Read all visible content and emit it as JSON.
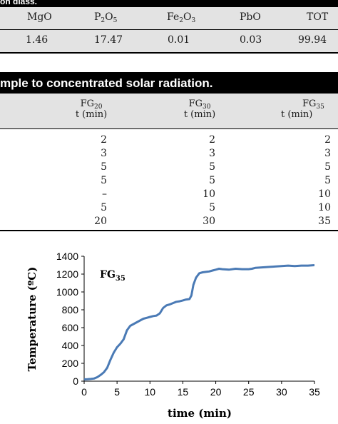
{
  "table1": {
    "header_text": "on glass.",
    "columns": [
      {
        "base": "MgO",
        "parts": []
      },
      {
        "base": "P",
        "parts": [
          {
            "sub": "2"
          },
          {
            "text": "O"
          },
          {
            "sub": "5"
          }
        ]
      },
      {
        "base": "Fe",
        "parts": [
          {
            "sub": "2"
          },
          {
            "text": "O"
          },
          {
            "sub": "3"
          }
        ]
      },
      {
        "base": "PbO",
        "parts": []
      },
      {
        "base": "TOT",
        "parts": []
      }
    ],
    "values": [
      "1.46",
      "17.47",
      "0.01",
      "0.03",
      "99.94"
    ]
  },
  "table2": {
    "caption": "mple to concentrated solar radiation.",
    "groups": [
      {
        "label": "FG",
        "sub": "20",
        "unit": "t (min)"
      },
      {
        "label": "FG",
        "sub": "30",
        "unit": "t (min)"
      },
      {
        "label": "FG",
        "sub": "35",
        "unit": "t (min)"
      }
    ],
    "rows": [
      [
        "2",
        "2",
        "2"
      ],
      [
        "3",
        "3",
        "3"
      ],
      [
        "5",
        "5",
        "5"
      ],
      [
        "5",
        "5",
        "5"
      ],
      [
        "–",
        "10",
        "10"
      ],
      [
        "5",
        "5",
        "10"
      ],
      [
        "20",
        "30",
        "35"
      ]
    ]
  },
  "chart_data": {
    "type": "line",
    "title": "FG",
    "title_sub": "35",
    "xlabel": "time (min)",
    "ylabel": "Temperature (ºC)",
    "xlim": [
      0,
      35
    ],
    "ylim": [
      0,
      1400
    ],
    "xticks": [
      "0",
      "5",
      "10",
      "15",
      "20",
      "25",
      "30",
      "35"
    ],
    "yticks": [
      "0",
      "200",
      "400",
      "600",
      "800",
      "1000",
      "1200",
      "1400"
    ],
    "line_color": "#4a7ab5",
    "grid": false,
    "series": [
      {
        "x": [
          0,
          0.5,
          1,
          1.5,
          2,
          2.5,
          3,
          3.5,
          4,
          4.5,
          5,
          5.5,
          6,
          6.5,
          7,
          7.5,
          8,
          8.5,
          9,
          9.5,
          10,
          10.5,
          11,
          11.5,
          12,
          12.5,
          13,
          13.5,
          14,
          14.5,
          15,
          15.5,
          16,
          16.3,
          16.6,
          17,
          17.5,
          18,
          18.5,
          19,
          19.5,
          20,
          20.5,
          21,
          22,
          23,
          24,
          25,
          25.5,
          26,
          27,
          28,
          29,
          30,
          31,
          32,
          33,
          34,
          35
        ],
        "y": [
          20,
          22,
          25,
          30,
          45,
          70,
          100,
          150,
          240,
          320,
          380,
          420,
          470,
          570,
          620,
          640,
          660,
          680,
          700,
          710,
          720,
          730,
          735,
          760,
          820,
          850,
          860,
          875,
          890,
          895,
          905,
          915,
          920,
          960,
          1080,
          1160,
          1210,
          1220,
          1225,
          1230,
          1240,
          1250,
          1260,
          1255,
          1250,
          1260,
          1255,
          1255,
          1260,
          1270,
          1275,
          1280,
          1285,
          1290,
          1295,
          1290,
          1295,
          1295,
          1300
        ]
      }
    ]
  }
}
